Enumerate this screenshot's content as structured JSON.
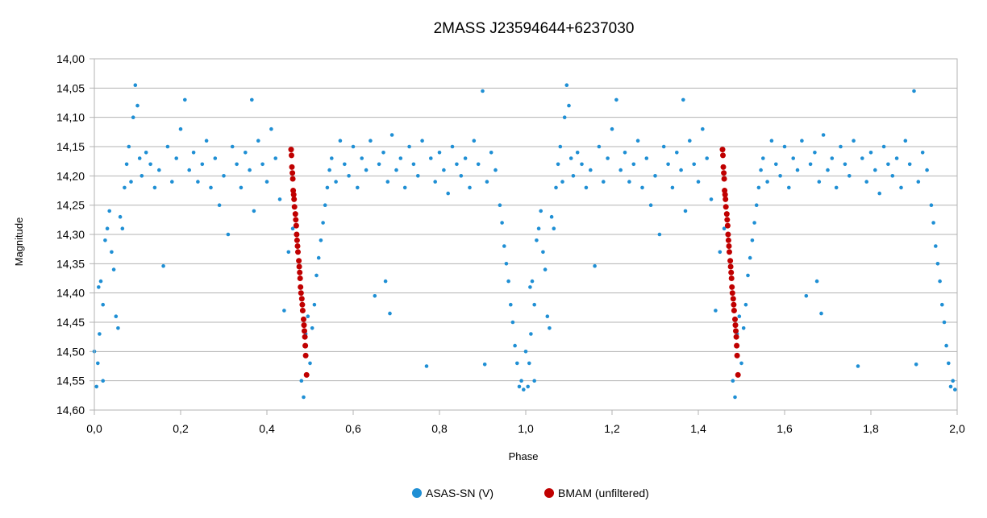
{
  "chart_data": {
    "type": "scatter",
    "title": "2MASS J23594644+6237030",
    "xlabel": "Phase",
    "ylabel": "Magnitude",
    "xlim": [
      0.0,
      2.0
    ],
    "ylim": [
      14.6,
      14.0
    ],
    "y_inverted": true,
    "x_ticks": [
      "0,0",
      "0,2",
      "0,4",
      "0,6",
      "0,8",
      "1,0",
      "1,2",
      "1,4",
      "1,6",
      "1,8",
      "2,0"
    ],
    "y_ticks": [
      "14,00",
      "14,05",
      "14,10",
      "14,15",
      "14,20",
      "14,25",
      "14,30",
      "14,35",
      "14,40",
      "14,45",
      "14,50",
      "14,55",
      "14,60"
    ],
    "grid": "horizontal",
    "legend_position": "bottom",
    "series": [
      {
        "name": "ASAS-SN (V)",
        "color": "#1f8fd4",
        "marker": "circle",
        "description_of_distribution": "phase-folded eclipsing binary light curve, repeated for phase 0-2",
        "points": [
          [
            0.0,
            14.5
          ],
          [
            0.005,
            14.56
          ],
          [
            0.008,
            14.52
          ],
          [
            0.01,
            14.39
          ],
          [
            0.012,
            14.47
          ],
          [
            0.015,
            14.38
          ],
          [
            0.02,
            14.55
          ],
          [
            0.02,
            14.42
          ],
          [
            0.025,
            14.31
          ],
          [
            0.03,
            14.29
          ],
          [
            0.035,
            14.26
          ],
          [
            0.04,
            14.33
          ],
          [
            0.045,
            14.36
          ],
          [
            0.05,
            14.44
          ],
          [
            0.055,
            14.46
          ],
          [
            0.06,
            14.27
          ],
          [
            0.065,
            14.29
          ],
          [
            0.07,
            14.22
          ],
          [
            0.075,
            14.18
          ],
          [
            0.08,
            14.15
          ],
          [
            0.085,
            14.21
          ],
          [
            0.09,
            14.1
          ],
          [
            0.095,
            14.045
          ],
          [
            0.1,
            14.08
          ],
          [
            0.105,
            14.17
          ],
          [
            0.11,
            14.2
          ],
          [
            0.12,
            14.16
          ],
          [
            0.13,
            14.18
          ],
          [
            0.14,
            14.22
          ],
          [
            0.15,
            14.19
          ],
          [
            0.16,
            14.354
          ],
          [
            0.17,
            14.15
          ],
          [
            0.18,
            14.21
          ],
          [
            0.19,
            14.17
          ],
          [
            0.2,
            14.12
          ],
          [
            0.21,
            14.07
          ],
          [
            0.22,
            14.19
          ],
          [
            0.23,
            14.16
          ],
          [
            0.24,
            14.21
          ],
          [
            0.25,
            14.18
          ],
          [
            0.26,
            14.14
          ],
          [
            0.27,
            14.22
          ],
          [
            0.28,
            14.17
          ],
          [
            0.29,
            14.25
          ],
          [
            0.3,
            14.2
          ],
          [
            0.31,
            14.3
          ],
          [
            0.32,
            14.15
          ],
          [
            0.33,
            14.18
          ],
          [
            0.34,
            14.22
          ],
          [
            0.35,
            14.16
          ],
          [
            0.36,
            14.19
          ],
          [
            0.365,
            14.07
          ],
          [
            0.37,
            14.26
          ],
          [
            0.38,
            14.14
          ],
          [
            0.39,
            14.18
          ],
          [
            0.4,
            14.21
          ],
          [
            0.41,
            14.12
          ],
          [
            0.42,
            14.17
          ],
          [
            0.43,
            14.24
          ],
          [
            0.44,
            14.43
          ],
          [
            0.45,
            14.33
          ],
          [
            0.46,
            14.29
          ],
          [
            0.48,
            14.55
          ],
          [
            0.485,
            14.578
          ],
          [
            0.49,
            14.47
          ],
          [
            0.495,
            14.44
          ],
          [
            0.5,
            14.52
          ],
          [
            0.505,
            14.46
          ],
          [
            0.51,
            14.42
          ],
          [
            0.515,
            14.37
          ],
          [
            0.52,
            14.34
          ],
          [
            0.525,
            14.31
          ],
          [
            0.53,
            14.28
          ],
          [
            0.535,
            14.25
          ],
          [
            0.54,
            14.22
          ],
          [
            0.545,
            14.19
          ],
          [
            0.55,
            14.17
          ],
          [
            0.56,
            14.21
          ],
          [
            0.57,
            14.14
          ],
          [
            0.58,
            14.18
          ],
          [
            0.59,
            14.2
          ],
          [
            0.6,
            14.15
          ],
          [
            0.61,
            14.22
          ],
          [
            0.62,
            14.17
          ],
          [
            0.63,
            14.19
          ],
          [
            0.64,
            14.14
          ],
          [
            0.65,
            14.405
          ],
          [
            0.66,
            14.18
          ],
          [
            0.67,
            14.16
          ],
          [
            0.675,
            14.38
          ],
          [
            0.68,
            14.21
          ],
          [
            0.685,
            14.435
          ],
          [
            0.69,
            14.13
          ],
          [
            0.7,
            14.19
          ],
          [
            0.71,
            14.17
          ],
          [
            0.72,
            14.22
          ],
          [
            0.73,
            14.15
          ],
          [
            0.74,
            14.18
          ],
          [
            0.75,
            14.2
          ],
          [
            0.76,
            14.14
          ],
          [
            0.77,
            14.525
          ],
          [
            0.78,
            14.17
          ],
          [
            0.79,
            14.21
          ],
          [
            0.8,
            14.16
          ],
          [
            0.81,
            14.19
          ],
          [
            0.82,
            14.23
          ],
          [
            0.83,
            14.15
          ],
          [
            0.84,
            14.18
          ],
          [
            0.85,
            14.2
          ],
          [
            0.86,
            14.17
          ],
          [
            0.87,
            14.22
          ],
          [
            0.88,
            14.14
          ],
          [
            0.89,
            14.18
          ],
          [
            0.9,
            14.055
          ],
          [
            0.905,
            14.522
          ],
          [
            0.91,
            14.21
          ],
          [
            0.92,
            14.16
          ],
          [
            0.93,
            14.19
          ],
          [
            0.94,
            14.25
          ],
          [
            0.945,
            14.28
          ],
          [
            0.95,
            14.32
          ],
          [
            0.955,
            14.35
          ],
          [
            0.96,
            14.38
          ],
          [
            0.965,
            14.42
          ],
          [
            0.97,
            14.45
          ],
          [
            0.975,
            14.49
          ],
          [
            0.98,
            14.52
          ],
          [
            0.985,
            14.56
          ],
          [
            0.99,
            14.55
          ],
          [
            0.995,
            14.565
          ]
        ]
      },
      {
        "name": "BMAM (unfiltered)",
        "color": "#c00000",
        "marker": "circle",
        "points": [
          [
            0.456,
            14.155
          ],
          [
            0.457,
            14.165
          ],
          [
            0.458,
            14.185
          ],
          [
            0.459,
            14.195
          ],
          [
            0.46,
            14.205
          ],
          [
            0.461,
            14.225
          ],
          [
            0.462,
            14.232
          ],
          [
            0.463,
            14.24
          ],
          [
            0.464,
            14.253
          ],
          [
            0.466,
            14.265
          ],
          [
            0.467,
            14.275
          ],
          [
            0.468,
            14.285
          ],
          [
            0.469,
            14.3
          ],
          [
            0.47,
            14.31
          ],
          [
            0.471,
            14.32
          ],
          [
            0.472,
            14.33
          ],
          [
            0.474,
            14.345
          ],
          [
            0.475,
            14.355
          ],
          [
            0.476,
            14.365
          ],
          [
            0.477,
            14.375
          ],
          [
            0.478,
            14.39
          ],
          [
            0.479,
            14.4
          ],
          [
            0.481,
            14.41
          ],
          [
            0.482,
            14.42
          ],
          [
            0.483,
            14.43
          ],
          [
            0.485,
            14.445
          ],
          [
            0.486,
            14.455
          ],
          [
            0.487,
            14.465
          ],
          [
            0.488,
            14.475
          ],
          [
            0.489,
            14.49
          ],
          [
            0.49,
            14.507
          ],
          [
            0.492,
            14.54
          ]
        ]
      }
    ]
  },
  "legend": {
    "items": [
      {
        "label": "ASAS-SN (V)",
        "color": "#1f8fd4"
      },
      {
        "label": "BMAM (unfiltered)",
        "color": "#c00000"
      }
    ]
  }
}
